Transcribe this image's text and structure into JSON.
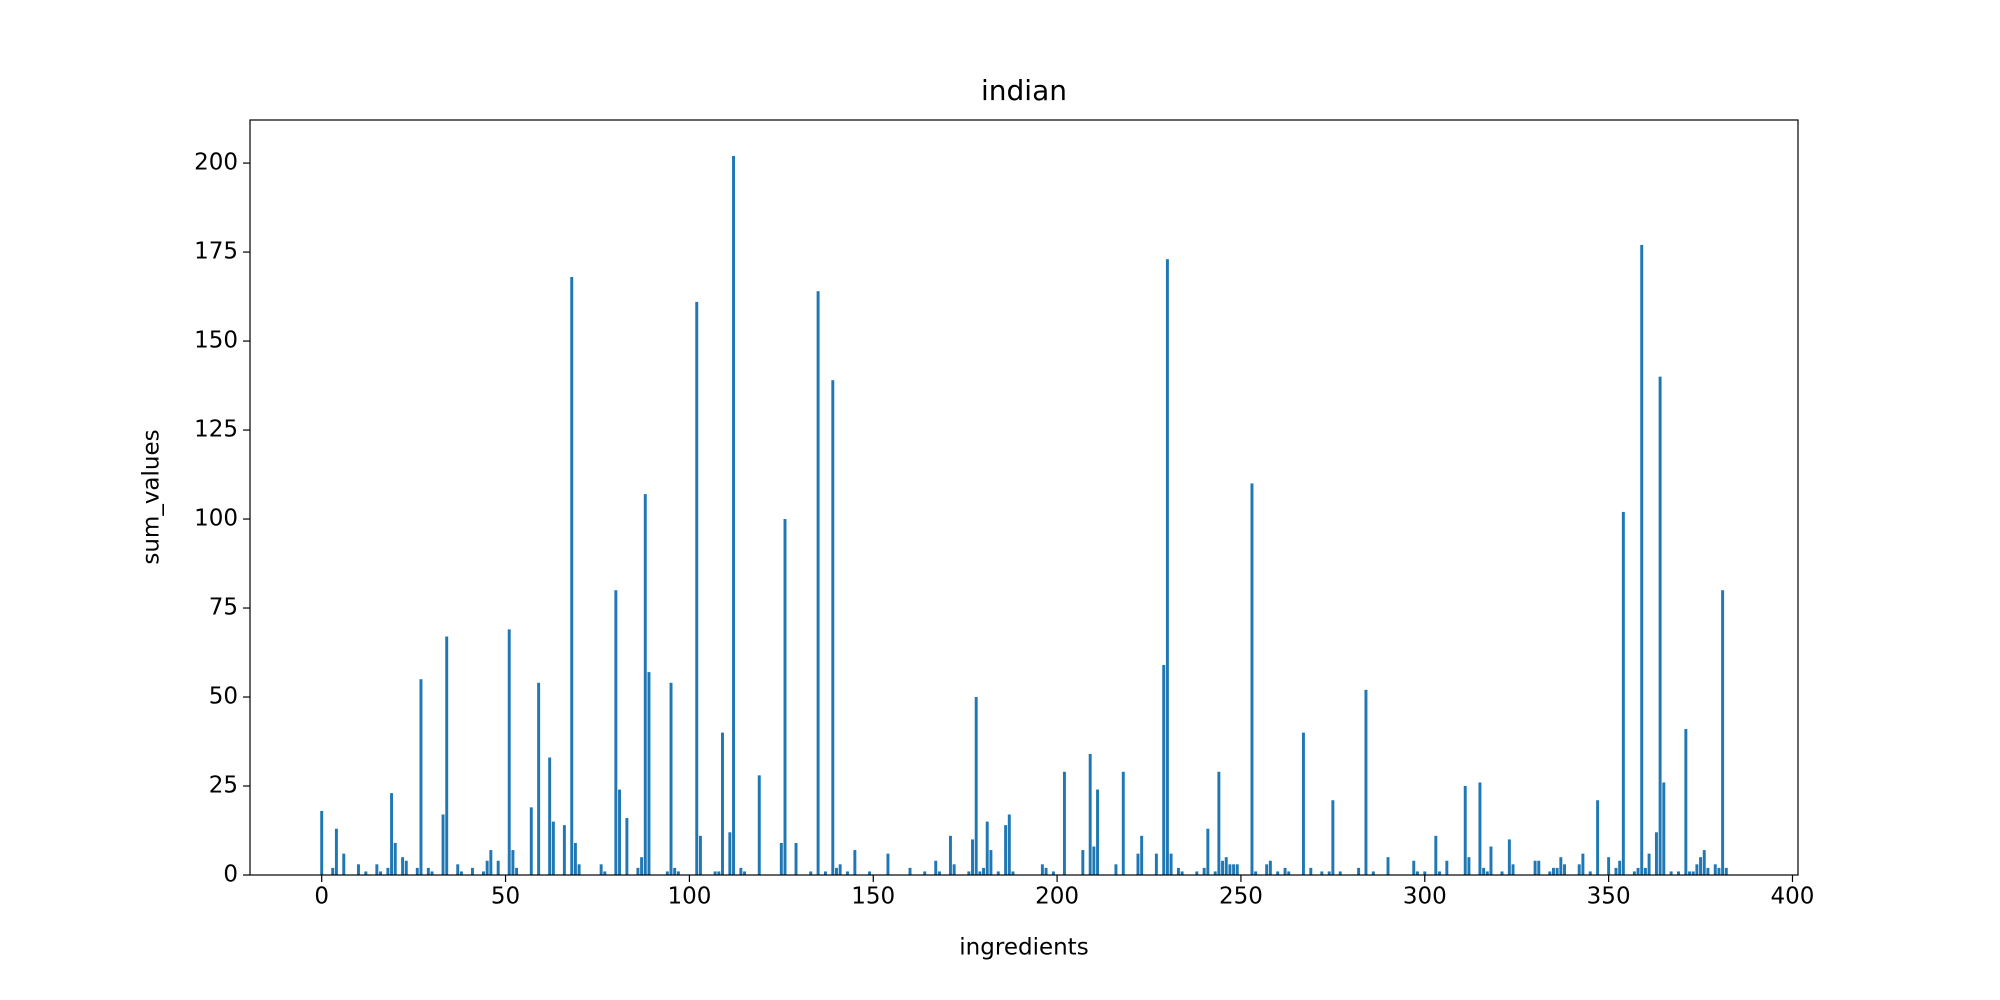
{
  "chart_data": {
    "type": "bar",
    "title": "indian",
    "x_label": "ingredients",
    "y_label": "sum_values",
    "color": "#1f77b4",
    "x": [
      0,
      3,
      4,
      6,
      10,
      12,
      15,
      16,
      18,
      19,
      20,
      22,
      23,
      26,
      27,
      29,
      30,
      33,
      34,
      37,
      38,
      41,
      44,
      45,
      46,
      48,
      51,
      52,
      53,
      57,
      59,
      62,
      63,
      66,
      68,
      69,
      70,
      76,
      77,
      80,
      81,
      83,
      86,
      87,
      88,
      89,
      94,
      95,
      96,
      97,
      102,
      103,
      107,
      108,
      109,
      111,
      112,
      114,
      115,
      119,
      125,
      126,
      129,
      133,
      135,
      137,
      139,
      140,
      141,
      143,
      145,
      149,
      154,
      160,
      164,
      167,
      168,
      171,
      172,
      176,
      177,
      178,
      179,
      180,
      181,
      182,
      184,
      186,
      187,
      188,
      196,
      197,
      199,
      202,
      207,
      209,
      210,
      211,
      216,
      218,
      222,
      223,
      227,
      229,
      230,
      231,
      233,
      234,
      238,
      240,
      241,
      243,
      244,
      245,
      246,
      247,
      248,
      249,
      253,
      254,
      257,
      258,
      260,
      262,
      263,
      267,
      269,
      272,
      274,
      275,
      277,
      282,
      284,
      286,
      290,
      297,
      298,
      300,
      303,
      304,
      306,
      311,
      312,
      315,
      316,
      317,
      318,
      321,
      323,
      324,
      330,
      331,
      334,
      335,
      336,
      337,
      338,
      342,
      343,
      345,
      347,
      350,
      352,
      353,
      354,
      357,
      358,
      359,
      360,
      361,
      363,
      364,
      365,
      367,
      369,
      371,
      372,
      373,
      374,
      375,
      376,
      377,
      379,
      380,
      381,
      382
    ],
    "values": [
      18,
      2,
      13,
      6,
      3,
      1,
      3,
      1,
      2,
      23,
      9,
      5,
      4,
      2,
      55,
      2,
      1,
      17,
      67,
      3,
      1,
      2,
      1,
      4,
      7,
      4,
      69,
      7,
      2,
      19,
      54,
      33,
      15,
      14,
      168,
      9,
      3,
      3,
      1,
      80,
      24,
      16,
      2,
      5,
      107,
      57,
      1,
      54,
      2,
      1,
      161,
      11,
      1,
      1,
      40,
      12,
      202,
      2,
      1,
      28,
      9,
      100,
      9,
      1,
      164,
      1,
      139,
      2,
      3,
      1,
      7,
      1,
      6,
      2,
      1,
      4,
      1,
      11,
      3,
      1,
      10,
      50,
      1,
      2,
      15,
      7,
      1,
      14,
      17,
      1,
      3,
      2,
      1,
      29,
      7,
      34,
      8,
      24,
      3,
      29,
      6,
      11,
      6,
      59,
      173,
      6,
      2,
      1,
      1,
      2,
      13,
      1,
      29,
      4,
      5,
      3,
      3,
      3,
      110,
      1,
      3,
      4,
      1,
      2,
      1,
      40,
      2,
      1,
      1,
      21,
      1,
      2,
      52,
      1,
      5,
      4,
      1,
      1,
      11,
      1,
      4,
      25,
      5,
      26,
      2,
      1,
      8,
      1,
      10,
      3,
      4,
      4,
      1,
      2,
      2,
      5,
      3,
      3,
      6,
      1,
      21,
      5,
      2,
      4,
      102,
      1,
      2,
      177,
      2,
      6,
      12,
      140,
      26,
      1,
      1,
      41,
      1,
      1,
      3,
      5,
      7,
      2,
      3,
      2,
      80,
      2
    ],
    "bar_width": 0.8,
    "xlim": [
      -19.5,
      401.5
    ],
    "xticks": [
      0,
      50,
      100,
      150,
      200,
      250,
      300,
      350,
      400
    ],
    "ylim": [
      0,
      212.1
    ],
    "yticks": [
      0,
      25,
      50,
      75,
      100,
      125,
      150,
      175,
      200
    ]
  }
}
